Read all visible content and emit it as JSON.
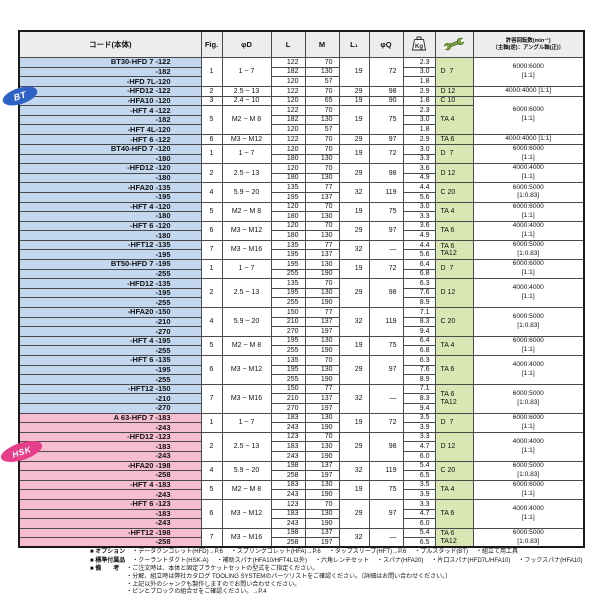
{
  "table": {
    "header": {
      "code": "コード(本体)",
      "fig": "Fig.",
      "dia": "φD",
      "l": "L",
      "m": "M",
      "l1": "L₁",
      "q": "φQ",
      "kg_icon": "kg-weight-icon",
      "kg_icon_text": "Kg",
      "wrench_icon": "wrench-icon",
      "rpm_line1": "許容回転数(min⁻¹)",
      "rpm_line2": "〔主軸(逆)：アングル軸(正)〕"
    },
    "colors": {
      "bt_row_bg": "#c3d8ef",
      "hsk_row_bg": "#f6bdd0",
      "tool_col_bg": "#d9e7b4",
      "header_bg": "#ededed",
      "bt_badge": "#2f62c6",
      "hsk_badge": "#e63e8a"
    },
    "groups": [
      {
        "shank": "bt",
        "fig": "1",
        "dia": "1 ~ 7",
        "l1": "19",
        "q": "72",
        "wrench": [
          "D  7"
        ],
        "rpm": [
          "6000:6000",
          "[1:1]"
        ],
        "rows": [
          {
            "code": "BT30-HFD 7 -122",
            "l": "122",
            "m": "70",
            "kg": "2.3"
          },
          {
            "code": "-182",
            "l": "182",
            "m": "130",
            "kg": "3.0"
          },
          {
            "code": "-HFD 7L-120",
            "l": "120",
            "m": "57",
            "kg": "1.8"
          }
        ]
      },
      {
        "shank": "bt",
        "fig": "2",
        "dia": "2.5 ~ 13",
        "l1": "29",
        "q": "98",
        "wrench": [
          "D 12"
        ],
        "rpm": [
          "4000:4000 [1:1]"
        ],
        "rows": [
          {
            "code": "-HFD12 -122",
            "l": "122",
            "m": "70",
            "kg": "2.9"
          }
        ]
      },
      {
        "shank": "bt",
        "fig": "3",
        "dia": "2.4 ~ 10",
        "l1": "19",
        "q": "90",
        "wrench": [
          "C 10"
        ],
        "rpm": [
          "6000:6000",
          "[1:1]"
        ],
        "rpm_extra": 3,
        "rows": [
          {
            "code": "-HFA10 -120",
            "l": "120",
            "m": "65",
            "kg": "1.8"
          }
        ]
      },
      {
        "shank": "bt",
        "fig": "5",
        "dia": "M2 ~ M 8",
        "l1": "19",
        "q": "75",
        "wrench": [
          "TA 4"
        ],
        "rpm": null,
        "rows": [
          {
            "code": "-HFT 4 -122",
            "l": "122",
            "m": "70",
            "kg": "2.3"
          },
          {
            "code": "-182",
            "l": "182",
            "m": "130",
            "kg": "3.0"
          },
          {
            "code": "-HFT 4L-120",
            "l": "120",
            "m": "57",
            "kg": "1.8"
          }
        ]
      },
      {
        "shank": "bt",
        "fig": "6",
        "dia": "M3 ~ M12",
        "l1": "29",
        "q": "97",
        "wrench": [
          "TA 6"
        ],
        "rpm": [
          "4000:4000 [1:1]"
        ],
        "rows": [
          {
            "code": "-HFT 6 -122",
            "l": "122",
            "m": "70",
            "kg": "2.9"
          }
        ]
      },
      {
        "shank": "bt",
        "fig": "1",
        "dia": "1 ~ 7",
        "l1": "19",
        "q": "72",
        "wrench": [
          "D  7"
        ],
        "rpm": [
          "6000:6000",
          "[1:1]"
        ],
        "rows": [
          {
            "code": "BT40-HFD 7 -120",
            "l": "120",
            "m": "70",
            "kg": "3.0"
          },
          {
            "code": "-180",
            "l": "180",
            "m": "130",
            "kg": "3.3"
          }
        ]
      },
      {
        "shank": "bt",
        "fig": "2",
        "dia": "2.5 ~ 13",
        "l1": "29",
        "q": "98",
        "wrench": [
          "D 12"
        ],
        "rpm": [
          "4000:4000",
          "[1:1]"
        ],
        "rows": [
          {
            "code": "-HFD12 -120",
            "l": "120",
            "m": "70",
            "kg": "3.6"
          },
          {
            "code": "-180",
            "l": "180",
            "m": "130",
            "kg": "4.9"
          }
        ]
      },
      {
        "shank": "bt",
        "fig": "4",
        "dia": "5.9 ~ 20",
        "l1": "32",
        "q": "119",
        "wrench": [
          "C 20"
        ],
        "rpm": [
          "6000:5000",
          "[1:0.83]"
        ],
        "rows": [
          {
            "code": "-HFA20 -135",
            "l": "135",
            "m": "77",
            "kg": "4.4"
          },
          {
            "code": "-195",
            "l": "195",
            "m": "137",
            "kg": "5.6"
          }
        ]
      },
      {
        "shank": "bt",
        "fig": "5",
        "dia": "M2 ~ M 8",
        "l1": "19",
        "q": "75",
        "wrench": [
          "TA 4"
        ],
        "rpm": [
          "6000:6000",
          "[1:1]"
        ],
        "rows": [
          {
            "code": "-HFT 4 -120",
            "l": "120",
            "m": "70",
            "kg": "3.0"
          },
          {
            "code": "-180",
            "l": "180",
            "m": "130",
            "kg": "3.3"
          }
        ]
      },
      {
        "shank": "bt",
        "fig": "6",
        "dia": "M3 ~ M12",
        "l1": "29",
        "q": "97",
        "wrench": [
          "TA 6"
        ],
        "rpm": [
          "4000:4000",
          "[1:1]"
        ],
        "rows": [
          {
            "code": "-HFT 6 -120",
            "l": "120",
            "m": "70",
            "kg": "3.6"
          },
          {
            "code": "-180",
            "l": "180",
            "m": "130",
            "kg": "4.9"
          }
        ]
      },
      {
        "shank": "bt",
        "fig": "7",
        "dia": "M3 ~ M16",
        "l1": "32",
        "q": "—",
        "wrench": [
          "TA 6",
          "TA12"
        ],
        "rpm": [
          "6000:5000",
          "[1:0.83]"
        ],
        "rows": [
          {
            "code": "-HFT12 -135",
            "l": "135",
            "m": "77",
            "kg": "4.4"
          },
          {
            "code": "-195",
            "l": "195",
            "m": "137",
            "kg": "5.6"
          }
        ]
      },
      {
        "shank": "bt",
        "fig": "1",
        "dia": "1 ~ 7",
        "l1": "19",
        "q": "72",
        "wrench": [
          "D  7"
        ],
        "rpm": [
          "6000:6000",
          "[1:1]"
        ],
        "rows": [
          {
            "code": "BT50-HFD 7 -195",
            "l": "195",
            "m": "130",
            "kg": "6.4"
          },
          {
            "code": "-255",
            "l": "255",
            "m": "190",
            "kg": "6.8"
          }
        ]
      },
      {
        "shank": "bt",
        "fig": "2",
        "dia": "2.5 ~ 13",
        "l1": "29",
        "q": "98",
        "wrench": [
          "D 12"
        ],
        "rpm": [
          "4000:4000",
          "[1:1]"
        ],
        "rows": [
          {
            "code": "-HFD12 -135",
            "l": "135",
            "m": "70",
            "kg": "6.3"
          },
          {
            "code": "-195",
            "l": "195",
            "m": "130",
            "kg": "7.6"
          },
          {
            "code": "-255",
            "l": "255",
            "m": "190",
            "kg": "8.9"
          }
        ]
      },
      {
        "shank": "bt",
        "fig": "4",
        "dia": "5.9 ~ 20",
        "l1": "32",
        "q": "119",
        "wrench": [
          "C 20"
        ],
        "rpm": [
          "6000:5000",
          "[1:0.83]"
        ],
        "rows": [
          {
            "code": "-HFA20 -150",
            "l": "150",
            "m": "77",
            "kg": "7.1"
          },
          {
            "code": "-210",
            "l": "210",
            "m": "137",
            "kg": "8.3"
          },
          {
            "code": "-270",
            "l": "270",
            "m": "197",
            "kg": "9.4"
          }
        ]
      },
      {
        "shank": "bt",
        "fig": "5",
        "dia": "M2 ~ M 8",
        "l1": "19",
        "q": "75",
        "wrench": [
          "TA 4"
        ],
        "rpm": [
          "6000:6000",
          "[1:1]"
        ],
        "rows": [
          {
            "code": "-HFT 4 -195",
            "l": "195",
            "m": "130",
            "kg": "6.4"
          },
          {
            "code": "-255",
            "l": "255",
            "m": "190",
            "kg": "6.8"
          }
        ]
      },
      {
        "shank": "bt",
        "fig": "6",
        "dia": "M3 ~ M12",
        "l1": "29",
        "q": "97",
        "wrench": [
          "TA 6"
        ],
        "rpm": [
          "4000:4000",
          "[1:1]"
        ],
        "rows": [
          {
            "code": "-HFT 6 -135",
            "l": "135",
            "m": "70",
            "kg": "6.3"
          },
          {
            "code": "-195",
            "l": "195",
            "m": "130",
            "kg": "7.6"
          },
          {
            "code": "-255",
            "l": "255",
            "m": "190",
            "kg": "8.9"
          }
        ]
      },
      {
        "shank": "bt",
        "fig": "7",
        "dia": "M3 ~ M16",
        "l1": "32",
        "q": "—",
        "wrench": [
          "TA 6",
          "TA12"
        ],
        "rpm": [
          "6000:5000",
          "[1:0.83]"
        ],
        "rows": [
          {
            "code": "-HFT12 -150",
            "l": "150",
            "m": "77",
            "kg": "7.1"
          },
          {
            "code": "-210",
            "l": "210",
            "m": "137",
            "kg": "8.3"
          },
          {
            "code": "-270",
            "l": "270",
            "m": "197",
            "kg": "9.4"
          }
        ]
      },
      {
        "shank": "hsk",
        "fig": "1",
        "dia": "1 ~ 7",
        "l1": "19",
        "q": "72",
        "wrench": [
          "D  7"
        ],
        "rpm": [
          "6000:6000",
          "[1:1]"
        ],
        "rows": [
          {
            "code": "A 63-HFD 7 -183",
            "l": "183",
            "m": "130",
            "kg": "3.5"
          },
          {
            "code": "-243",
            "l": "243",
            "m": "190",
            "kg": "3.9"
          }
        ]
      },
      {
        "shank": "hsk",
        "fig": "2",
        "dia": "2.5 ~ 13",
        "l1": "29",
        "q": "98",
        "wrench": [
          "D 12"
        ],
        "rpm": [
          "4000:4000",
          "[1:1]"
        ],
        "rows": [
          {
            "code": "-HFD12 -123",
            "l": "123",
            "m": "70",
            "kg": "3.3"
          },
          {
            "code": "-183",
            "l": "183",
            "m": "130",
            "kg": "4.7"
          },
          {
            "code": "-243",
            "l": "243",
            "m": "190",
            "kg": "6.0"
          }
        ]
      },
      {
        "shank": "hsk",
        "fig": "4",
        "dia": "5.9 ~ 20",
        "l1": "32",
        "q": "119",
        "wrench": [
          "C 20"
        ],
        "rpm": [
          "6000:5000",
          "[1:0.83]"
        ],
        "rows": [
          {
            "code": "-HFA20 -198",
            "l": "198",
            "m": "137",
            "kg": "5.4"
          },
          {
            "code": "-258",
            "l": "258",
            "m": "197",
            "kg": "6.5"
          }
        ]
      },
      {
        "shank": "hsk",
        "fig": "5",
        "dia": "M2 ~ M 8",
        "l1": "19",
        "q": "75",
        "wrench": [
          "TA 4"
        ],
        "rpm": [
          "6000:6000",
          "[1:1]"
        ],
        "rows": [
          {
            "code": "-HFT 4 -183",
            "l": "183",
            "m": "130",
            "kg": "3.5"
          },
          {
            "code": "-243",
            "l": "243",
            "m": "190",
            "kg": "3.9"
          }
        ]
      },
      {
        "shank": "hsk",
        "fig": "6",
        "dia": "M3 ~ M12",
        "l1": "29",
        "q": "97",
        "wrench": [
          "TA 6"
        ],
        "rpm": [
          "4000:4000",
          "[1:1]"
        ],
        "rows": [
          {
            "code": "-HFT 6 -123",
            "l": "123",
            "m": "70",
            "kg": "3.3"
          },
          {
            "code": "-183",
            "l": "183",
            "m": "130",
            "kg": "4.7"
          },
          {
            "code": "-243",
            "l": "243",
            "m": "190",
            "kg": "6.0"
          }
        ]
      },
      {
        "shank": "hsk",
        "fig": "7",
        "dia": "M3 ~ M16",
        "l1": "32",
        "q": "—",
        "wrench": [
          "TA 6",
          "TA12"
        ],
        "rpm": [
          "6000:5000",
          "[1:0.83]"
        ],
        "rows": [
          {
            "code": "-HFT12 -198",
            "l": "198",
            "m": "137",
            "kg": "5.4"
          },
          {
            "code": "-258",
            "l": "258",
            "m": "197",
            "kg": "6.5"
          }
        ]
      }
    ]
  },
  "badges": {
    "bt": {
      "label": "BT",
      "color": "#2f62c6"
    },
    "hsk": {
      "label": "HSK",
      "color": "#e63e8a"
    }
  },
  "footer": {
    "options_label": "■ オプション",
    "options_items": [
      "・データクンコレット(HFD)→P.6",
      "・スプリングコレット(HFA)→P.6",
      "・タップスリーブ(HFT)→P.6",
      "・プルスタッド(BT)",
      "・組立て用工具"
    ],
    "accessories_label": "■ 標準付属品",
    "accessories_items": [
      "・クーラントダクト(HSK-A)",
      "・補助スパナ(HFA10/HFT4L以外)",
      "・六角レンチセット",
      "・スパナ(HFA20)",
      "・片口スパナ(HFD7L/HFA10)",
      "・フックスパナ(HFA10)"
    ],
    "notes_label": "■ 備　　考",
    "notes_items": [
      "・ご注文時は、本体と固定ブラケットセットの型式をご指定ください。",
      "・分解、組立時は弊社カタログ TOOLING SYSTEMのパーツリストをご確認ください。〔詳細はお問い合わせください。〕",
      "・上記以外のシャンクも製作しますのでお問い合わせください。",
      "・ピンとブロックの組合せをご確認ください。→P.4"
    ]
  }
}
